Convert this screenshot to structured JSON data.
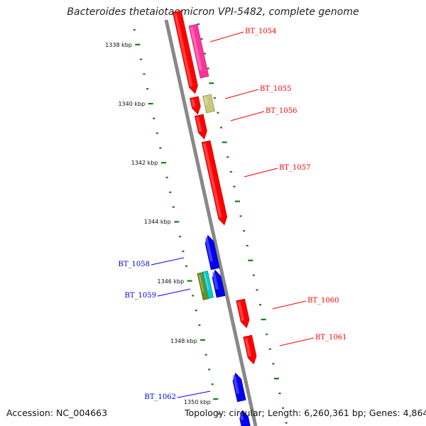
{
  "title": "Bacteroides thetaiotaomicron VPI-5482, complete genome",
  "footer": {
    "accession_label": "Accession:",
    "accession": "NC_004663",
    "topology_label": "Topology:",
    "topology": "circular",
    "length_label": "Length:",
    "length": "6,260,361 bp",
    "genes_label": "Genes:",
    "genes": "4,864"
  },
  "colors": {
    "backbone": "#888888",
    "tick": "#1a7a1a",
    "forward_gene": "#ff0000",
    "reverse_gene": "#0000ee",
    "pink_gene": "#ff3399",
    "olive_gene": "#c8c87a",
    "cyan_gene": "#00cccc",
    "green_gene": "#6b8e23"
  },
  "scale": {
    "unit": "kbp",
    "labels": [
      "1338 kbp",
      "1340 kbp",
      "1342 kbp",
      "1344 kbp",
      "1346 kbp",
      "1348 kbp",
      "1350 kbp"
    ]
  },
  "genes": [
    {
      "label": "BT_1054",
      "strand": "forward",
      "color_key": "forward_gene"
    },
    {
      "label": "BT_1055",
      "strand": "forward",
      "color_key": "forward_gene"
    },
    {
      "label": "BT_1056",
      "strand": "forward",
      "color_key": "forward_gene"
    },
    {
      "label": "BT_1057",
      "strand": "forward",
      "color_key": "forward_gene"
    },
    {
      "label": "BT_1058",
      "strand": "reverse",
      "color_key": "reverse_gene"
    },
    {
      "label": "BT_1059",
      "strand": "reverse",
      "color_key": "reverse_gene"
    },
    {
      "label": "BT_1060",
      "strand": "forward",
      "color_key": "forward_gene"
    },
    {
      "label": "BT_1061",
      "strand": "forward",
      "color_key": "forward_gene"
    },
    {
      "label": "BT_1062",
      "strand": "reverse",
      "color_key": "reverse_gene"
    }
  ]
}
